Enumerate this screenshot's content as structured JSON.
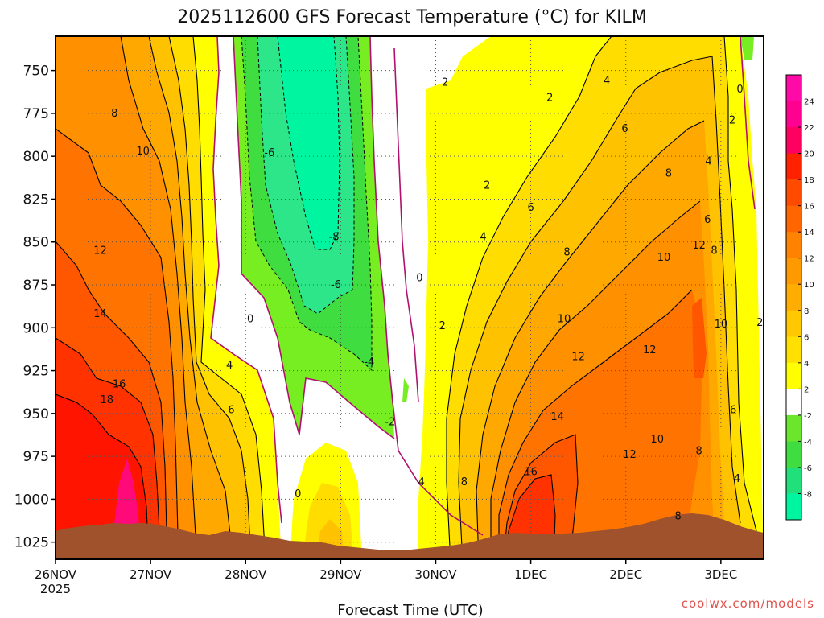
{
  "chart_data": {
    "type": "heatmap",
    "title": "2025112600 GFS Forecast Temperature (°C) for KILM",
    "xlabel": "Forecast Time (UTC)",
    "ylabel": "",
    "credit": "coolwx.com/models",
    "x_ticks": [
      {
        "label": "26NOV",
        "sub": "2025",
        "day": 0
      },
      {
        "label": "27NOV",
        "sub": "",
        "day": 1
      },
      {
        "label": "28NOV",
        "sub": "",
        "day": 2
      },
      {
        "label": "29NOV",
        "sub": "",
        "day": 3
      },
      {
        "label": "30NOV",
        "sub": "",
        "day": 4
      },
      {
        "label": "1DEC",
        "sub": "",
        "day": 5
      },
      {
        "label": "2DEC",
        "sub": "",
        "day": 6
      },
      {
        "label": "3DEC",
        "sub": "",
        "day": 7
      }
    ],
    "x_range_days": [
      0,
      7.45
    ],
    "y_ticks": [
      "750",
      "775",
      "800",
      "825",
      "850",
      "875",
      "900",
      "925",
      "950",
      "975",
      "1000",
      "1025"
    ],
    "y_range_hpa": [
      730,
      1035
    ],
    "y_reversed": true,
    "grid": true,
    "colorbar": {
      "position": "right",
      "labels": [
        "-8",
        "-6",
        "-4",
        "-2",
        "2",
        "4",
        "6",
        "8",
        "10",
        "12",
        "14",
        "16",
        "18",
        "20",
        "22",
        "24"
      ],
      "colors": [
        "#00f5a0",
        "#1fe07a",
        "#3fdd3f",
        "#6ce62c",
        "#ffffff",
        "#ffff00",
        "#ffe000",
        "#ffc800",
        "#ffad00",
        "#ff9900",
        "#ff8200",
        "#ff6600",
        "#ff4a00",
        "#ff2200",
        "#ff0060",
        "#ff0090",
        "#ff0aa6"
      ]
    },
    "fill_steps": [
      {
        "label": "-8",
        "color": "#00f5a0"
      },
      {
        "label": "-6",
        "color": "#2de68a"
      },
      {
        "label": "-4",
        "color": "#3fdd3f"
      },
      {
        "label": "-2",
        "color": "#77ee22"
      },
      {
        "label": "0",
        "color": "#ffffff"
      },
      {
        "label": "2",
        "color": "#ffff00"
      },
      {
        "label": "4",
        "color": "#ffdd00"
      },
      {
        "label": "6",
        "color": "#ffc200"
      },
      {
        "label": "8",
        "color": "#ffa800"
      },
      {
        "label": "10",
        "color": "#ff9000"
      },
      {
        "label": "12",
        "color": "#ff7400"
      },
      {
        "label": "14",
        "color": "#ff5600"
      },
      {
        "label": "16",
        "color": "#ff3200"
      },
      {
        "label": "18",
        "color": "#ff1400"
      },
      {
        "label": "22",
        "color": "#ff0a78"
      }
    ],
    "contour_labels": [
      {
        "text": "8",
        "day": 0.62,
        "hpa": 775
      },
      {
        "text": "10",
        "day": 0.92,
        "hpa": 797
      },
      {
        "text": "12",
        "day": 0.47,
        "hpa": 855
      },
      {
        "text": "14",
        "day": 0.47,
        "hpa": 892
      },
      {
        "text": "16",
        "day": 0.67,
        "hpa": 933
      },
      {
        "text": "18",
        "day": 0.54,
        "hpa": 942
      },
      {
        "text": "4",
        "day": 1.83,
        "hpa": 922
      },
      {
        "text": "6",
        "day": 1.85,
        "hpa": 948
      },
      {
        "text": "0",
        "day": 2.05,
        "hpa": 895
      },
      {
        "text": "0",
        "day": 2.55,
        "hpa": 997
      },
      {
        "text": "-6",
        "day": 2.25,
        "hpa": 798
      },
      {
        "text": "-8",
        "day": 2.93,
        "hpa": 847
      },
      {
        "text": "-6",
        "day": 2.95,
        "hpa": 875
      },
      {
        "text": "-4",
        "day": 3.3,
        "hpa": 920
      },
      {
        "text": "-2",
        "day": 3.52,
        "hpa": 955
      },
      {
        "text": "0",
        "day": 3.83,
        "hpa": 871
      },
      {
        "text": "2",
        "day": 4.1,
        "hpa": 757
      },
      {
        "text": "2",
        "day": 4.54,
        "hpa": 817
      },
      {
        "text": "2",
        "day": 4.07,
        "hpa": 899
      },
      {
        "text": "4",
        "day": 4.5,
        "hpa": 847
      },
      {
        "text": "4",
        "day": 3.85,
        "hpa": 990
      },
      {
        "text": "8",
        "day": 4.3,
        "hpa": 990
      },
      {
        "text": "6",
        "day": 5.0,
        "hpa": 830
      },
      {
        "text": "8",
        "day": 5.38,
        "hpa": 856
      },
      {
        "text": "10",
        "day": 5.35,
        "hpa": 895
      },
      {
        "text": "12",
        "day": 5.5,
        "hpa": 917
      },
      {
        "text": "14",
        "day": 5.28,
        "hpa": 952
      },
      {
        "text": "16",
        "day": 5.0,
        "hpa": 984
      },
      {
        "text": "2",
        "day": 5.2,
        "hpa": 766
      },
      {
        "text": "4",
        "day": 5.8,
        "hpa": 756
      },
      {
        "text": "6",
        "day": 5.99,
        "hpa": 784
      },
      {
        "text": "8",
        "day": 6.45,
        "hpa": 810
      },
      {
        "text": "6",
        "day": 6.86,
        "hpa": 837
      },
      {
        "text": "10",
        "day": 6.4,
        "hpa": 859
      },
      {
        "text": "12",
        "day": 6.77,
        "hpa": 852
      },
      {
        "text": "8",
        "day": 6.93,
        "hpa": 855
      },
      {
        "text": "12",
        "day": 6.25,
        "hpa": 913
      },
      {
        "text": "10",
        "day": 6.33,
        "hpa": 965
      },
      {
        "text": "12",
        "day": 6.04,
        "hpa": 974
      },
      {
        "text": "8",
        "day": 6.77,
        "hpa": 972
      },
      {
        "text": "8",
        "day": 6.55,
        "hpa": 1010
      },
      {
        "text": "4",
        "day": 6.87,
        "hpa": 803
      },
      {
        "text": "2",
        "day": 7.12,
        "hpa": 779
      },
      {
        "text": "0",
        "day": 7.2,
        "hpa": 761
      },
      {
        "text": "10",
        "day": 7.0,
        "hpa": 898
      },
      {
        "text": "2",
        "day": 7.41,
        "hpa": 897
      },
      {
        "text": "6",
        "day": 7.13,
        "hpa": 948
      },
      {
        "text": "4",
        "day": 7.17,
        "hpa": 988
      }
    ],
    "terrain_color": "#a0522d"
  }
}
